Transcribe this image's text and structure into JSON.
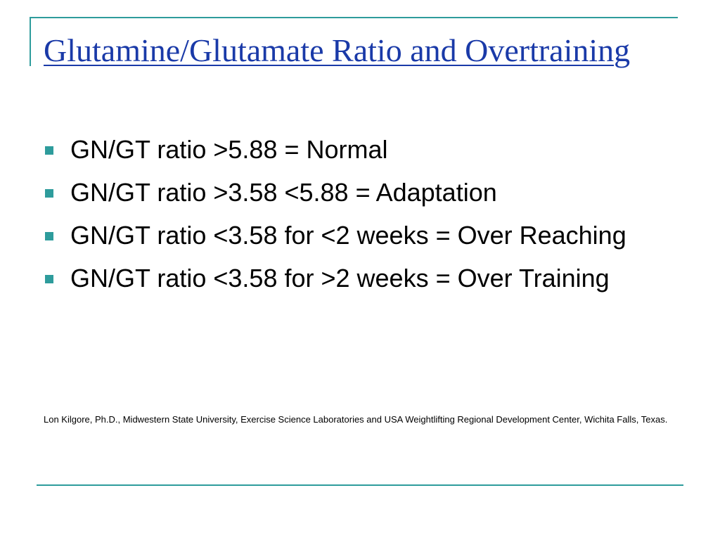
{
  "slide": {
    "title": "Glutamine/Glutamate Ratio and Overtraining",
    "bullets": [
      "GN/GT ratio >5.88 = Normal",
      "GN/GT ratio >3.58 <5.88 = Adaptation",
      "GN/GT ratio <3.58 for <2 weeks = Over Reaching",
      "GN/GT ratio <3.58 for >2 weeks = Over Training"
    ],
    "citation": "Lon Kilgore, Ph.D., Midwestern State University, Exercise Science Laboratories and USA Weightlifting Regional Development Center, Wichita Falls, Texas."
  },
  "theme": {
    "accent_color": "#2e9c9c",
    "title_color": "#1a3aa8",
    "bullet_icon": "square-bullet-icon"
  }
}
